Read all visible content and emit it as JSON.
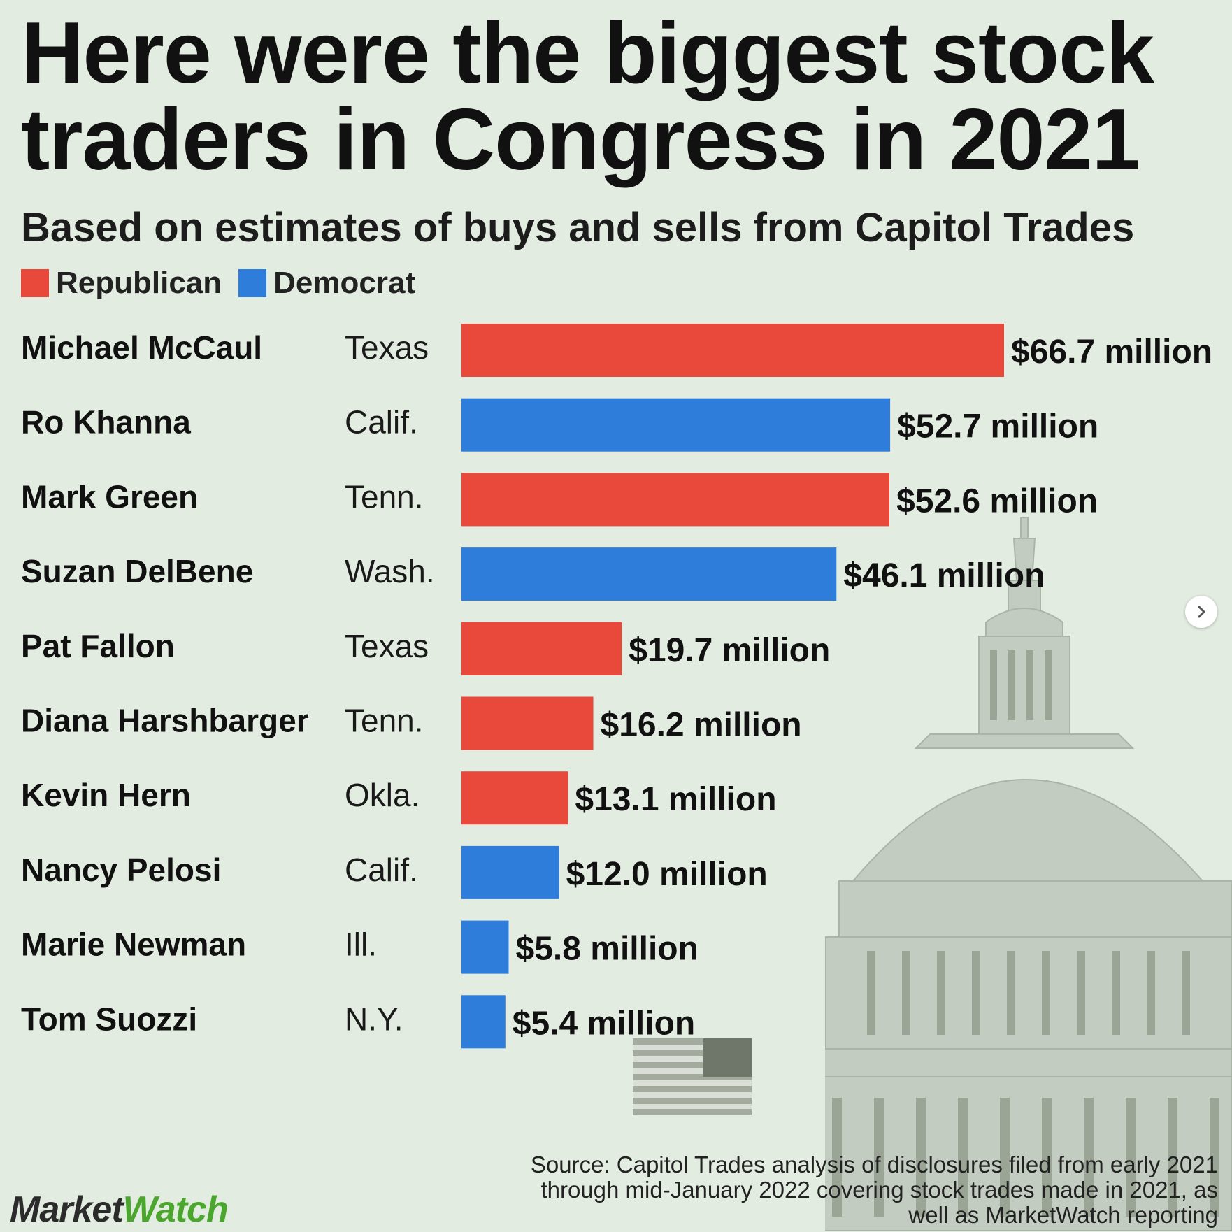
{
  "header": {
    "title": "Here were the biggest stock traders in Congress in 2021",
    "subtitle": "Based on estimates of buys and sells from Capitol Trades"
  },
  "legend": [
    {
      "label": "Republican",
      "color": "#e8493a"
    },
    {
      "label": "Democrat",
      "color": "#2f7ddb"
    }
  ],
  "chart_data": {
    "type": "bar",
    "orientation": "horizontal",
    "categories": [
      "Michael McCaul",
      "Ro Khanna",
      "Mark Green",
      "Suzan DelBene",
      "Pat Fallon",
      "Diana Harshbarger",
      "Kevin Hern",
      "Nancy Pelosi",
      "Marie Newman",
      "Tom Suozzi"
    ],
    "states": [
      "Texas",
      "Calif.",
      "Tenn.",
      "Wash.",
      "Texas",
      "Tenn.",
      "Okla.",
      "Calif.",
      "Ill.",
      "N.Y."
    ],
    "party": [
      "Republican",
      "Democrat",
      "Republican",
      "Democrat",
      "Republican",
      "Republican",
      "Republican",
      "Democrat",
      "Democrat",
      "Democrat"
    ],
    "values": [
      66.7,
      52.7,
      52.6,
      46.1,
      19.7,
      16.2,
      13.1,
      12.0,
      5.8,
      5.4
    ],
    "value_labels": [
      "$66.7 million",
      "$52.7 million",
      "$52.6 million",
      "$46.1 million",
      "$19.7 million",
      "$16.2 million",
      "$13.1 million",
      "$12.0 million",
      "$5.8 million",
      "$5.4 million"
    ],
    "colors": {
      "Republican": "#e8493a",
      "Democrat": "#2f7ddb"
    },
    "grid": false
  },
  "footer": {
    "source": "Source: Capitol Trades analysis of disclosures filed from early 2021 through mid-January 2022 covering stock trades made in 2021, as well as MarketWatch reporting",
    "logo_part1": "Market",
    "logo_part2": "Watch"
  },
  "icons": {
    "background": "capitol-building-icon",
    "flag": "us-flag-icon",
    "next": "chevron-right-icon"
  }
}
